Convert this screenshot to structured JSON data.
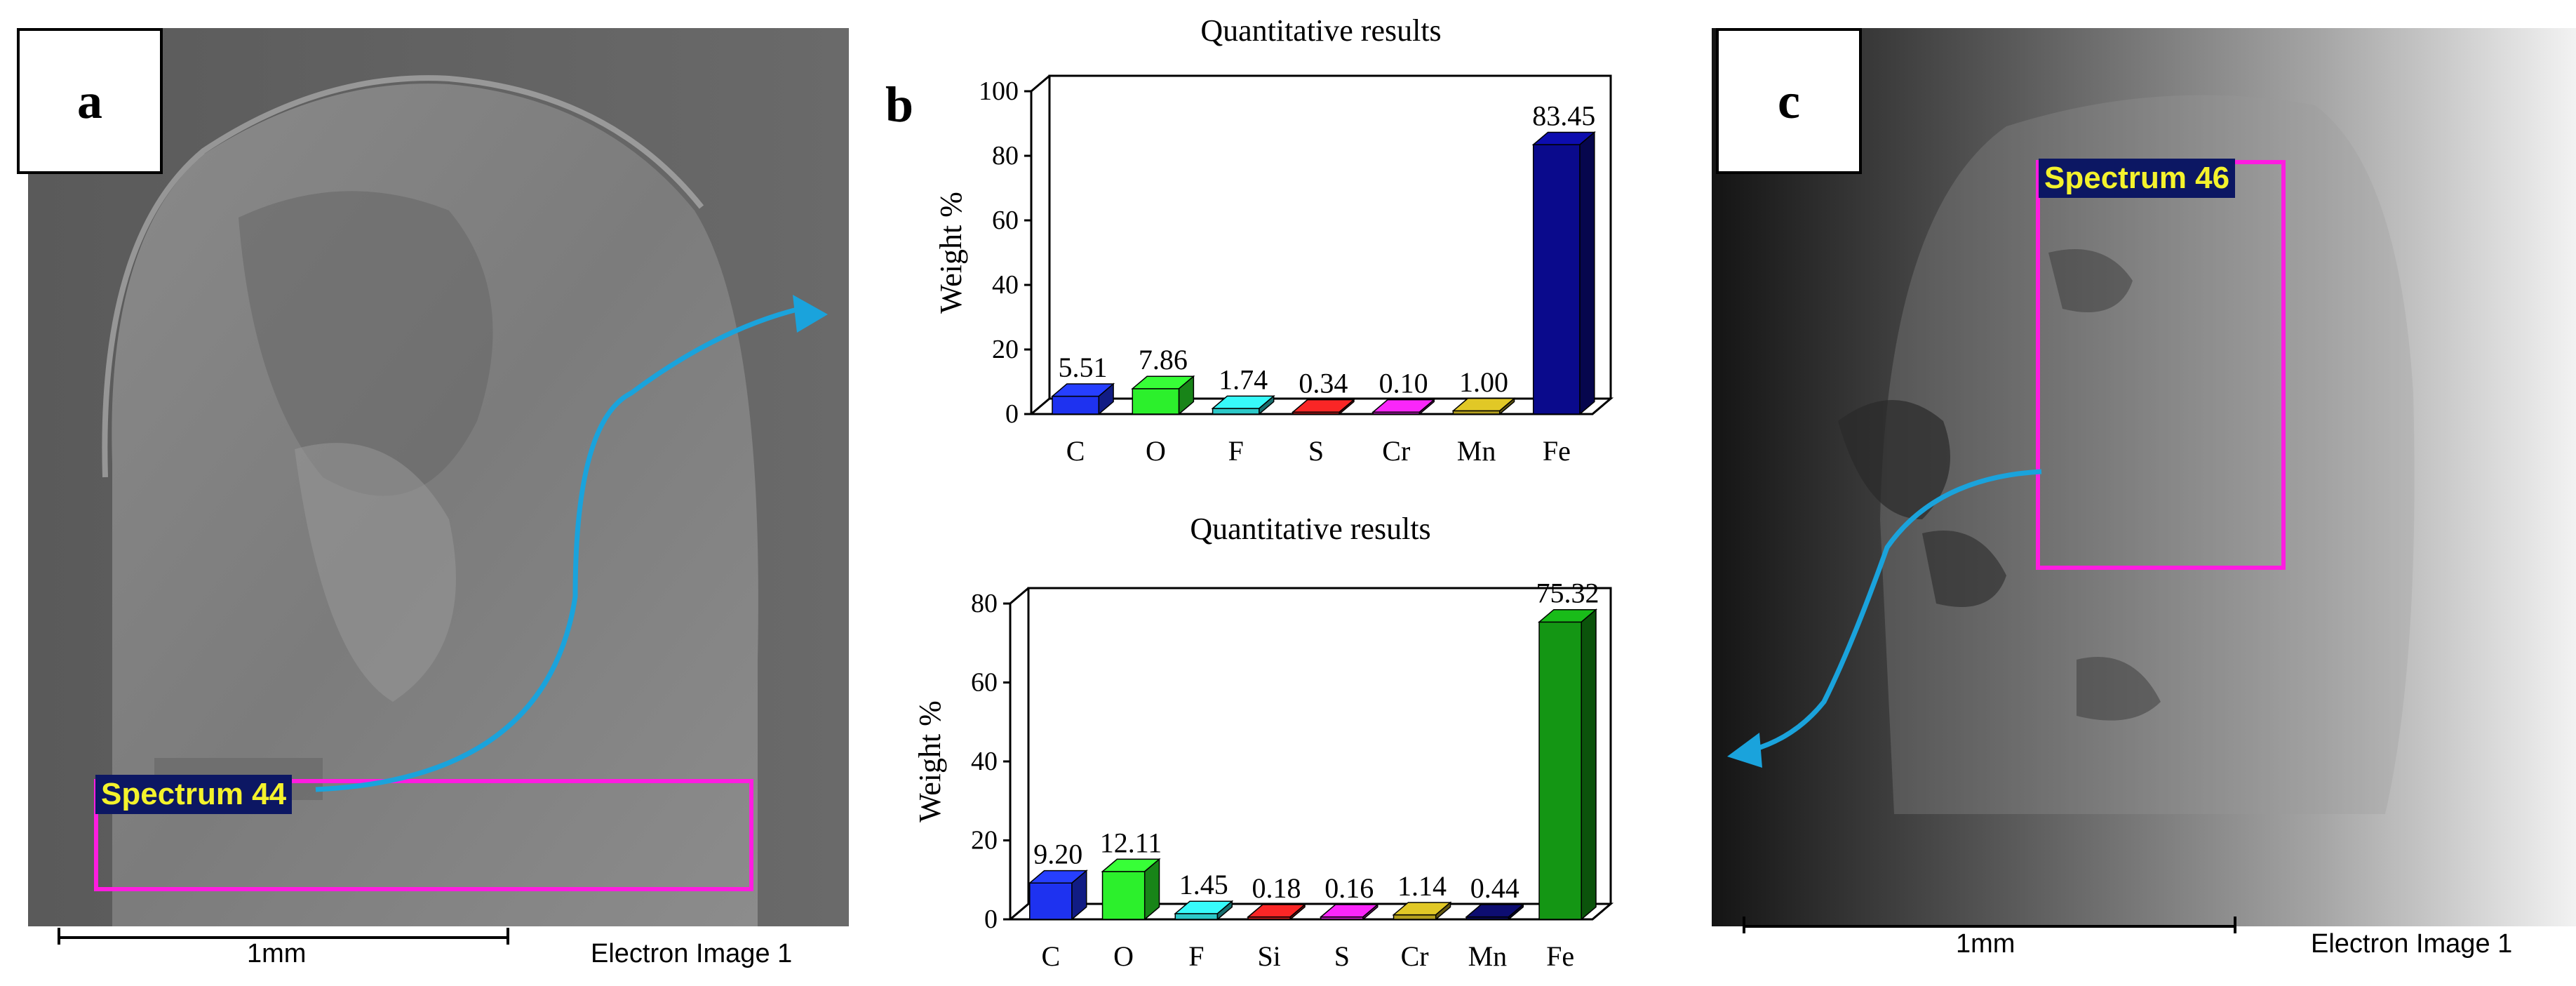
{
  "panels": {
    "a": {
      "letter": "a",
      "spectrum_label": "Spectrum 44",
      "scale_label": "1mm",
      "caption": "Electron Image 1"
    },
    "b": {
      "letter": "b"
    },
    "c": {
      "letter": "c",
      "spectrum_label": "Spectrum 46",
      "scale_label": "1mm",
      "caption": "Electron Image 1"
    }
  },
  "colors": {
    "spectrum_box": "#ff1ce0",
    "spectrum_label_bg": "#0c1763",
    "spectrum_label_fg": "#f4f22c",
    "arrow": "#1aa3dc"
  },
  "chart_data": [
    {
      "type": "bar",
      "title": "Quantitative results",
      "xlabel": "",
      "ylabel": "Weight %",
      "ylim": [
        0,
        100
      ],
      "yticks": [
        0,
        20,
        40,
        60,
        80,
        100
      ],
      "grid": false,
      "categories": [
        "C",
        "O",
        "F",
        "S",
        "Cr",
        "Mn",
        "Fe"
      ],
      "values": [
        5.51,
        7.86,
        1.74,
        0.34,
        0.1,
        1.0,
        83.45
      ],
      "labels": [
        "5.51",
        "7.86",
        "1.74",
        "0.34",
        "0.10",
        "1.00",
        "83.45"
      ],
      "bar_colors": [
        "#1e32f0",
        "#2cf02c",
        "#2cc8c8",
        "#c81e1e",
        "#c81ec8",
        "#b4a01e",
        "#0a0a8c"
      ]
    },
    {
      "type": "bar",
      "title": "Quantitative results",
      "xlabel": "",
      "ylabel": "Weight %",
      "ylim": [
        0,
        80
      ],
      "yticks": [
        0,
        20,
        40,
        60,
        80
      ],
      "grid": false,
      "categories": [
        "C",
        "O",
        "F",
        "Si",
        "S",
        "Cr",
        "Mn",
        "Fe"
      ],
      "values": [
        9.2,
        12.11,
        1.45,
        0.18,
        0.16,
        1.14,
        0.44,
        75.32
      ],
      "labels": [
        "9.20",
        "12.11",
        "1.45",
        "0.18",
        "0.16",
        "1.14",
        "0.44",
        "75.32"
      ],
      "bar_colors": [
        "#1e32f0",
        "#2cf02c",
        "#2cc8c8",
        "#c81e1e",
        "#c81ec8",
        "#b4a01e",
        "#0a0a5a",
        "#149614"
      ]
    }
  ]
}
